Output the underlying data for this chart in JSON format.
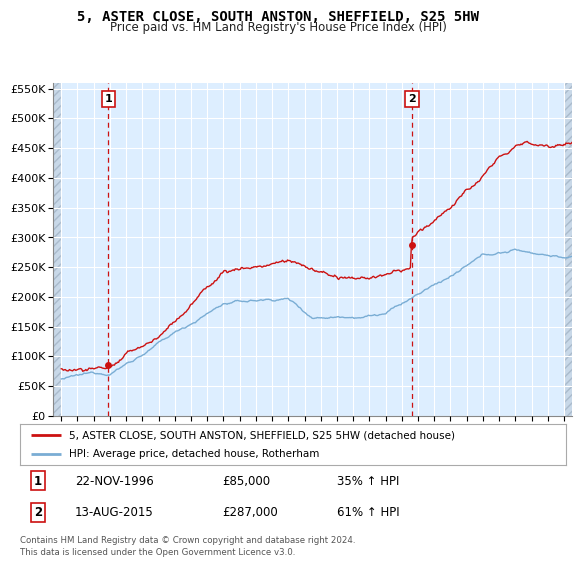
{
  "title": "5, ASTER CLOSE, SOUTH ANSTON, SHEFFIELD, S25 5HW",
  "subtitle": "Price paid vs. HM Land Registry's House Price Index (HPI)",
  "legend_line1": "5, ASTER CLOSE, SOUTH ANSTON, SHEFFIELD, S25 5HW (detached house)",
  "legend_line2": "HPI: Average price, detached house, Rotherham",
  "annotation1_date": "22-NOV-1996",
  "annotation1_price": "£85,000",
  "annotation1_hpi": "35% ↑ HPI",
  "annotation2_date": "13-AUG-2015",
  "annotation2_price": "£287,000",
  "annotation2_hpi": "61% ↑ HPI",
  "footer": "Contains HM Land Registry data © Crown copyright and database right 2024.\nThis data is licensed under the Open Government Licence v3.0.",
  "sale1_year": 1996.9,
  "sale1_value": 85000,
  "sale2_year": 2015.62,
  "sale2_value": 287000,
  "hpi_color": "#7aadd4",
  "price_color": "#cc1111",
  "vline_color": "#cc1111",
  "plot_bg_color": "#ddeeff",
  "hatch_color": "#c8d8e8",
  "grid_color": "#ffffff",
  "ylim": [
    0,
    560000
  ],
  "xlim_start": 1993.5,
  "xlim_end": 2025.5
}
